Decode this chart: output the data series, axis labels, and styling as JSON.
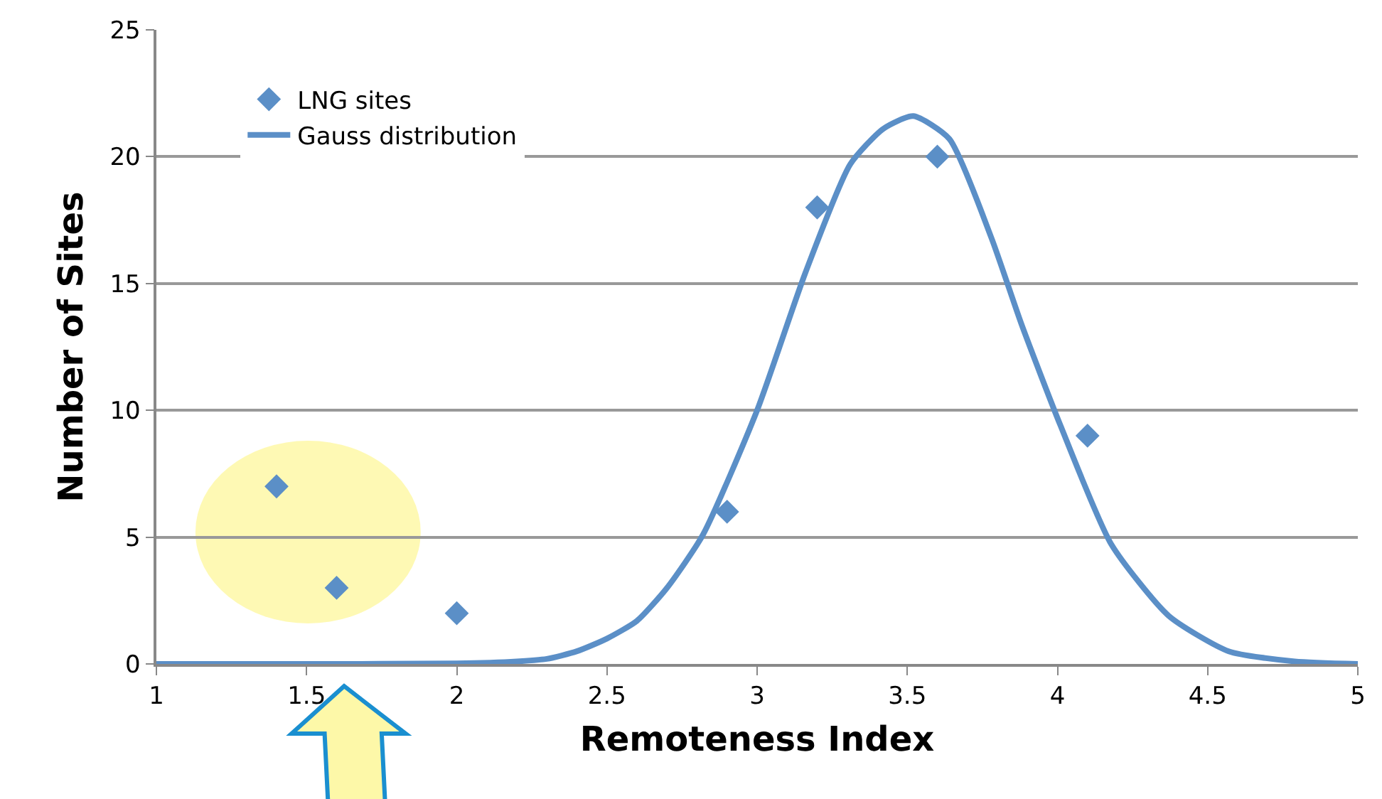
{
  "chart_data": {
    "type": "scatter",
    "xlabel": "Remoteness Index",
    "ylabel": "Number of Sites",
    "xlim": [
      1,
      5
    ],
    "xticks": [
      1,
      1.5,
      2,
      2.5,
      3,
      3.5,
      4,
      4.5,
      5
    ],
    "ylim": [
      0,
      25
    ],
    "yticks": [
      0,
      5,
      10,
      15,
      20,
      25
    ],
    "grid": "y",
    "legend": "top left",
    "series": [
      {
        "name": "LNG sites",
        "marker": "diamond",
        "color": "#5b8fc7",
        "x": [
          1.4,
          1.6,
          2,
          2.9,
          3.2,
          3.6,
          4.1
        ],
        "values": [
          7,
          3,
          2,
          6,
          18,
          20,
          9
        ]
      },
      {
        "name": "Gauss distribution",
        "type": "line",
        "color": "#5b8fc7",
        "x": [
          1,
          1.5,
          2,
          2.2,
          2.3,
          2.4,
          2.5,
          2.6,
          2.7,
          2.82,
          3.0,
          3.16,
          3.31,
          3.42,
          3.52,
          3.64,
          3.78,
          3.88,
          4.01,
          4.18,
          4.37,
          4.57,
          4.79,
          5
        ],
        "values": [
          0,
          0,
          0.02,
          0.1,
          0.2,
          0.5,
          1.0,
          1.7,
          3.0,
          5.1,
          10.0,
          15.4,
          19.7,
          21.1,
          21.6,
          20.7,
          16.8,
          13.4,
          9.4,
          4.7,
          1.9,
          0.5,
          0.1,
          0
        ]
      }
    ]
  }
}
